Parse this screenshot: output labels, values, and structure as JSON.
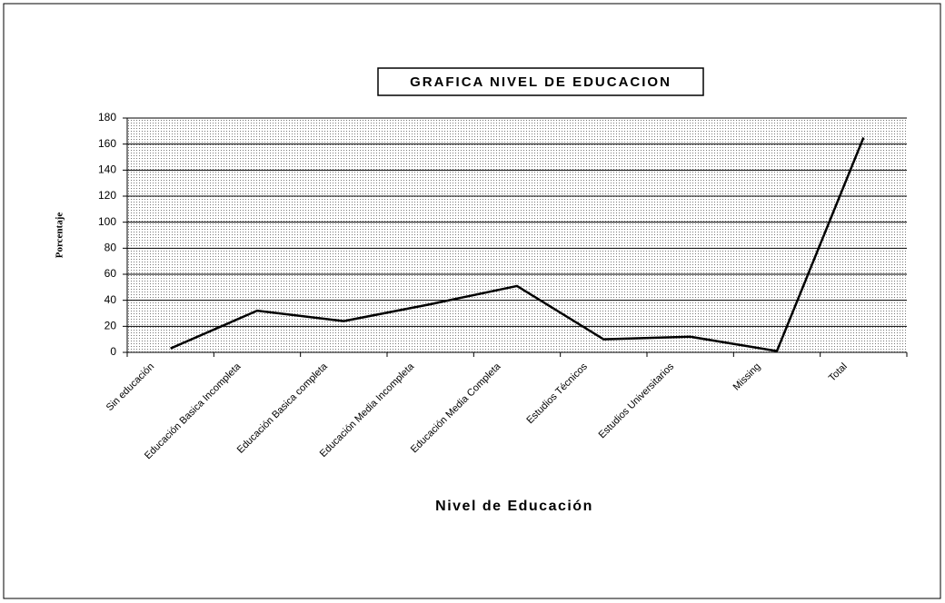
{
  "chart_data": {
    "type": "line",
    "title": "GRAFICA NIVEL DE EDUCACION",
    "x_label": "Nivel de Educación",
    "y_label": "Porcentaje",
    "categories": [
      "Sin educación",
      "Educación Basica Incompleta",
      "Educación Basica completa",
      "Educación Media Incompleta",
      "Educación Media Completa",
      "Estudios Técnicos",
      "Estudios Universitarios",
      "Missing",
      "Total"
    ],
    "values": [
      3,
      32,
      24,
      37,
      51,
      10,
      12,
      1,
      165
    ],
    "color": "#000000",
    "ylim": [
      0,
      180
    ],
    "yticks": [
      0,
      20,
      40,
      60,
      80,
      100,
      120,
      140,
      160,
      180
    ],
    "grid": true
  }
}
